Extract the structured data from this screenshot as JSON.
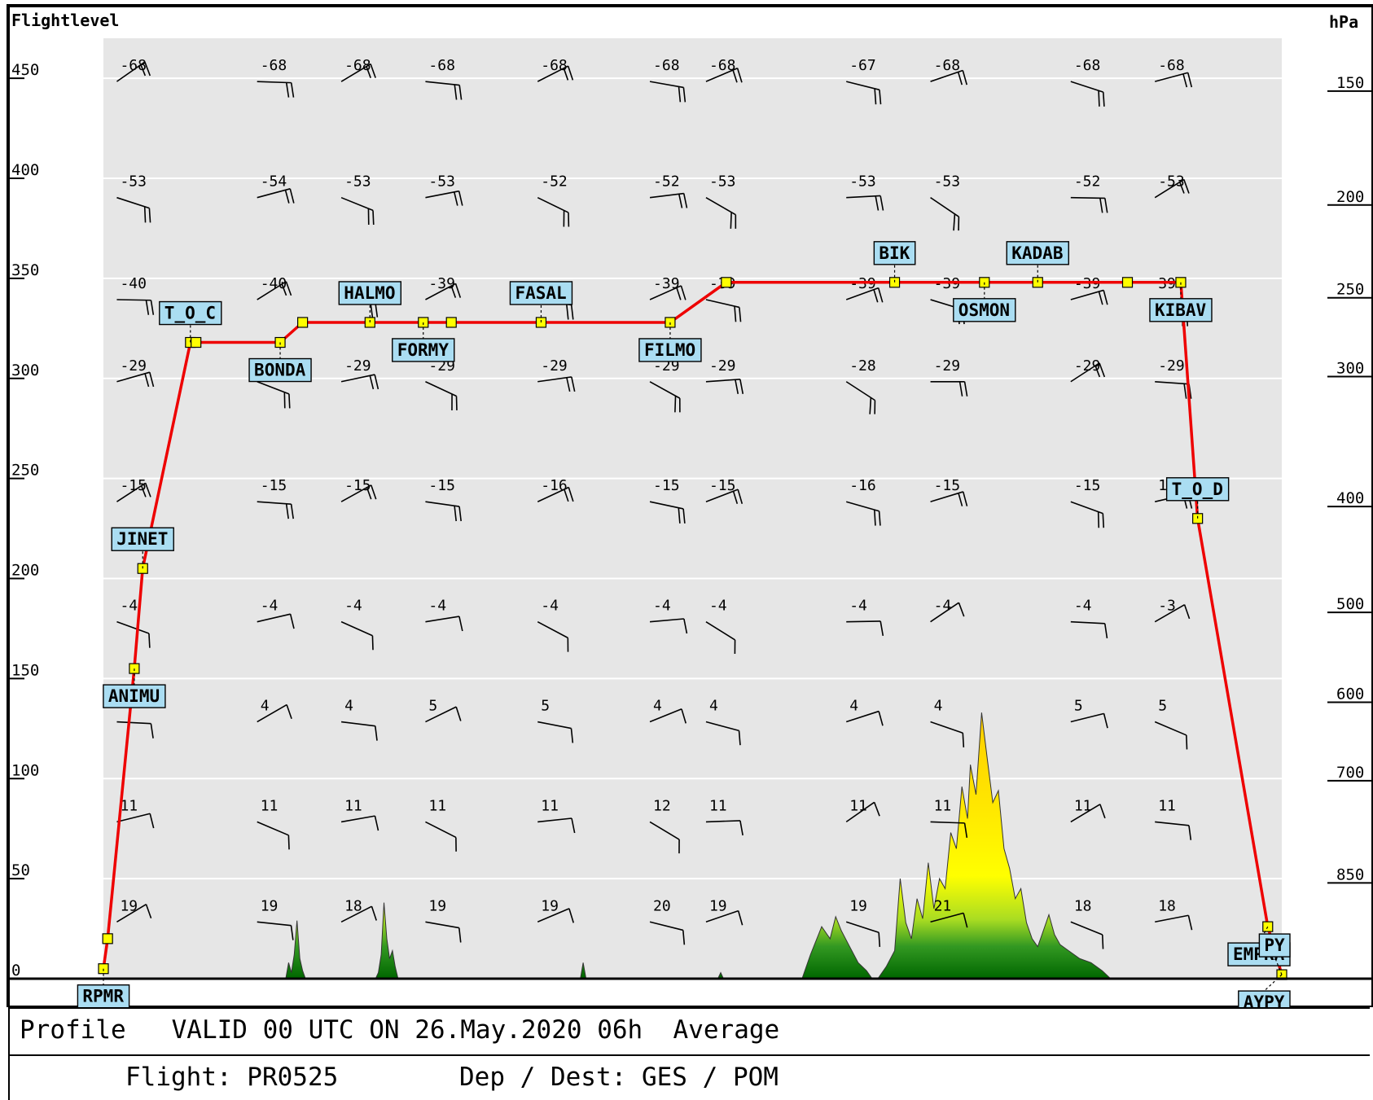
{
  "chart_data": {
    "type": "line",
    "left_axis_title": "Flightlevel",
    "right_axis_title": "hPa",
    "left_ticks": [
      "450",
      "400",
      "350",
      "300",
      "250",
      "200",
      "150",
      "100",
      "50",
      "0"
    ],
    "right_ticks": [
      "150",
      "200",
      "250",
      "300",
      "400",
      "500",
      "600",
      "700",
      "850"
    ],
    "ylim": [
      0,
      470
    ],
    "profile": [
      {
        "t": 0.0,
        "fl": 5
      },
      {
        "t": 0.15,
        "fl": 20
      },
      {
        "t": 1.1,
        "fl": 155
      },
      {
        "t": 1.4,
        "fl": 205
      },
      {
        "t": 3.1,
        "fl": 318
      },
      {
        "t": 3.3,
        "fl": 318
      },
      {
        "t": 6.3,
        "fl": 318
      },
      {
        "t": 7.1,
        "fl": 328
      },
      {
        "t": 9.5,
        "fl": 328
      },
      {
        "t": 11.4,
        "fl": 328
      },
      {
        "t": 12.4,
        "fl": 328
      },
      {
        "t": 15.6,
        "fl": 328
      },
      {
        "t": 20.2,
        "fl": 328
      },
      {
        "t": 22.2,
        "fl": 348
      },
      {
        "t": 28.2,
        "fl": 348
      },
      {
        "t": 31.4,
        "fl": 348
      },
      {
        "t": 33.3,
        "fl": 348
      },
      {
        "t": 36.5,
        "fl": 348
      },
      {
        "t": 38.4,
        "fl": 348
      },
      {
        "t": 39.0,
        "fl": 230
      },
      {
        "t": 41.5,
        "fl": 26
      },
      {
        "t": 42.0,
        "fl": 2
      }
    ],
    "markers": [
      0,
      1,
      2,
      3,
      4,
      5,
      6,
      7,
      8,
      9,
      10,
      11,
      12,
      13,
      14,
      15,
      16,
      17,
      18,
      19,
      20,
      21
    ],
    "waypoints": [
      {
        "name": "RPMR",
        "p": 0,
        "side": "below"
      },
      {
        "name": "ANIMU",
        "p": 2,
        "side": "below"
      },
      {
        "name": "JINET",
        "p": 3,
        "side": "above"
      },
      {
        "name": "T_O_C",
        "p": 4,
        "side": "above"
      },
      {
        "name": "BONDA",
        "p": 6,
        "side": "below"
      },
      {
        "name": "HALMO",
        "p": 8,
        "side": "above"
      },
      {
        "name": "FORMY",
        "p": 9,
        "side": "below"
      },
      {
        "name": "FASAL",
        "p": 11,
        "side": "above"
      },
      {
        "name": "FILMO",
        "p": 12,
        "side": "below"
      },
      {
        "name": "BIK",
        "p": 14,
        "side": "above"
      },
      {
        "name": "OSMON",
        "p": 15,
        "side": "below"
      },
      {
        "name": "KADAB",
        "p": 16,
        "side": "above"
      },
      {
        "name": "KIBAV",
        "p": 18,
        "side": "below"
      },
      {
        "name": "T_O_D",
        "p": 19,
        "side": "above"
      },
      {
        "name": "EMPRA",
        "p": 20,
        "side": "below"
      },
      {
        "name": "PY",
        "p": 21,
        "side": "above"
      },
      {
        "name": "AYPY",
        "p": 21,
        "side": "below"
      }
    ],
    "temperature_levels": [
      450,
      392,
      341,
      300,
      240,
      180,
      130,
      80,
      30
    ],
    "temperature_columns": [
      {
        "t": 1,
        "temps": [
          "-68",
          "-53",
          "-40",
          "-29",
          "-15",
          "-4",
          "",
          "11",
          "19"
        ]
      },
      {
        "t": 6,
        "temps": [
          "-68",
          "-54",
          "-40",
          "",
          "-15",
          "-4",
          "4",
          "11",
          "19"
        ]
      },
      {
        "t": 9,
        "temps": [
          "-68",
          "-53",
          "",
          "-29",
          "-15",
          "-4",
          "4",
          "11",
          "18"
        ]
      },
      {
        "t": 12,
        "temps": [
          "-68",
          "-53",
          "-39",
          "-29",
          "-15",
          "-4",
          "5",
          "11",
          "19"
        ]
      },
      {
        "t": 16,
        "temps": [
          "-68",
          "-52",
          "",
          "-29",
          "-16",
          "-4",
          "5",
          "11",
          "19"
        ]
      },
      {
        "t": 20,
        "temps": [
          "-68",
          "-52",
          "-39",
          "-29",
          "-15",
          "-4",
          "4",
          "12",
          "20"
        ]
      },
      {
        "t": 22,
        "temps": [
          "-68",
          "-53",
          "-39",
          "-29",
          "-15",
          "-4",
          "4",
          "11",
          "19"
        ]
      },
      {
        "t": 27,
        "temps": [
          "-67",
          "-53",
          "-39",
          "-28",
          "-16",
          "-4",
          "4",
          "11",
          "19"
        ]
      },
      {
        "t": 30,
        "temps": [
          "-68",
          "-53",
          "-39",
          "-29",
          "-15",
          "-4",
          "4",
          "11",
          "21"
        ]
      },
      {
        "t": 35,
        "temps": [
          "-68",
          "-52",
          "-39",
          "-29",
          "-15",
          "-4",
          "5",
          "11",
          "18"
        ]
      },
      {
        "t": 38,
        "temps": [
          "-68",
          "-53",
          "39",
          "-29",
          "16",
          "-3",
          "5",
          "11",
          "18"
        ]
      }
    ],
    "terrain": [
      {
        "t": 6.5,
        "h": 0
      },
      {
        "t": 6.6,
        "h": 8
      },
      {
        "t": 6.7,
        "h": 3
      },
      {
        "t": 6.8,
        "h": 12
      },
      {
        "t": 6.9,
        "h": 29
      },
      {
        "t": 7.0,
        "h": 10
      },
      {
        "t": 7.1,
        "h": 4
      },
      {
        "t": 7.2,
        "h": 0
      },
      {
        "t": 9.7,
        "h": 0
      },
      {
        "t": 9.8,
        "h": 3
      },
      {
        "t": 9.9,
        "h": 12
      },
      {
        "t": 10.0,
        "h": 38
      },
      {
        "t": 10.1,
        "h": 20
      },
      {
        "t": 10.2,
        "h": 10
      },
      {
        "t": 10.3,
        "h": 14
      },
      {
        "t": 10.4,
        "h": 6
      },
      {
        "t": 10.5,
        "h": 0
      },
      {
        "t": 17.0,
        "h": 0
      },
      {
        "t": 17.1,
        "h": 8
      },
      {
        "t": 17.2,
        "h": 0
      },
      {
        "t": 21.9,
        "h": 0
      },
      {
        "t": 22.0,
        "h": 3
      },
      {
        "t": 22.1,
        "h": 0
      },
      {
        "t": 24.9,
        "h": 0
      },
      {
        "t": 25.2,
        "h": 12
      },
      {
        "t": 25.6,
        "h": 26
      },
      {
        "t": 25.9,
        "h": 20
      },
      {
        "t": 26.1,
        "h": 31
      },
      {
        "t": 26.3,
        "h": 24
      },
      {
        "t": 26.6,
        "h": 16
      },
      {
        "t": 26.9,
        "h": 8
      },
      {
        "t": 27.2,
        "h": 4
      },
      {
        "t": 27.4,
        "h": 0
      },
      {
        "t": 27.6,
        "h": 0
      },
      {
        "t": 27.9,
        "h": 6
      },
      {
        "t": 28.2,
        "h": 14
      },
      {
        "t": 28.4,
        "h": 50
      },
      {
        "t": 28.6,
        "h": 28
      },
      {
        "t": 28.8,
        "h": 20
      },
      {
        "t": 29.0,
        "h": 40
      },
      {
        "t": 29.2,
        "h": 30
      },
      {
        "t": 29.4,
        "h": 58
      },
      {
        "t": 29.6,
        "h": 35
      },
      {
        "t": 29.8,
        "h": 50
      },
      {
        "t": 30.0,
        "h": 45
      },
      {
        "t": 30.2,
        "h": 73
      },
      {
        "t": 30.4,
        "h": 65
      },
      {
        "t": 30.6,
        "h": 96
      },
      {
        "t": 30.8,
        "h": 80
      },
      {
        "t": 30.9,
        "h": 107
      },
      {
        "t": 31.1,
        "h": 92
      },
      {
        "t": 31.3,
        "h": 133
      },
      {
        "t": 31.5,
        "h": 110
      },
      {
        "t": 31.7,
        "h": 88
      },
      {
        "t": 31.9,
        "h": 94
      },
      {
        "t": 32.1,
        "h": 65
      },
      {
        "t": 32.3,
        "h": 55
      },
      {
        "t": 32.5,
        "h": 40
      },
      {
        "t": 32.7,
        "h": 45
      },
      {
        "t": 32.9,
        "h": 28
      },
      {
        "t": 33.1,
        "h": 20
      },
      {
        "t": 33.3,
        "h": 16
      },
      {
        "t": 33.5,
        "h": 24
      },
      {
        "t": 33.7,
        "h": 32
      },
      {
        "t": 33.9,
        "h": 22
      },
      {
        "t": 34.1,
        "h": 17
      },
      {
        "t": 34.4,
        "h": 14
      },
      {
        "t": 34.8,
        "h": 10
      },
      {
        "t": 35.2,
        "h": 8
      },
      {
        "t": 35.6,
        "h": 4
      },
      {
        "t": 35.9,
        "h": 0
      }
    ]
  },
  "footer": {
    "line1": "Profile   VALID 00 UTC ON 26.May.2020 06h  Average",
    "flight": "Flight: PR0525",
    "route": "Dep / Dest: GES / POM"
  }
}
